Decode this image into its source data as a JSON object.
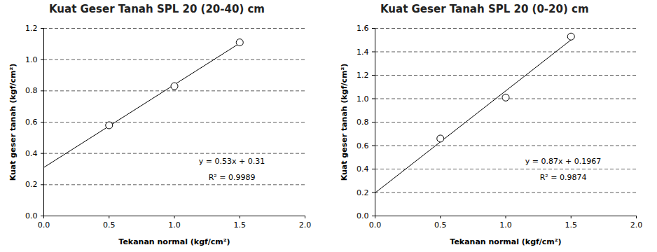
{
  "chart_data": [
    {
      "type": "scatter",
      "title": "Kuat Geser Tanah SPL 20 (20-40) cm",
      "x_label": "Tekanan normal (kgf/cm²)",
      "y_label": "Kuat geser tanah (kgf/cm²)",
      "x": [
        0.5,
        1.0,
        1.5
      ],
      "values": [
        0.58,
        0.83,
        1.11
      ],
      "marker": "circle",
      "trendline": {
        "x": [
          0,
          1.5
        ],
        "values": [
          0.31,
          1.105
        ]
      },
      "annotations": [
        "y = 0.53x + 0.31",
        "R² = 0.9989"
      ],
      "xlim": [
        0,
        2
      ],
      "xticks": [
        {
          "value": 0,
          "label": "0.0"
        },
        0.5,
        {
          "value": 1,
          "label": "1.0"
        },
        1.5,
        {
          "value": 2,
          "label": "2.0"
        }
      ],
      "ylim": [
        0,
        1.2
      ],
      "yticks": [
        {
          "value": 0,
          "label": "0.0"
        },
        0.2,
        0.4,
        0.6,
        0.8,
        {
          "value": 1,
          "label": "1.0"
        },
        1.2
      ],
      "grid": "y",
      "color": "#000000"
    },
    {
      "type": "scatter",
      "title": "Kuat Geser Tanah SPL 20 (0-20) cm",
      "x_label": "Tekanan normal (kgf/cm²)",
      "y_label": "Kuat geser tanah (kgf/cm²)",
      "x": [
        0.5,
        1.0,
        1.5
      ],
      "values": [
        0.66,
        1.01,
        1.53
      ],
      "marker": "circle",
      "trendline": {
        "x": [
          0,
          1.5
        ],
        "values": [
          0.1967,
          1.5017
        ]
      },
      "annotations": [
        "y = 0.87x + 0.1967",
        "R² = 0.9874"
      ],
      "xlim": [
        0,
        2
      ],
      "xticks": [
        {
          "value": 0,
          "label": "0.0"
        },
        0.5,
        {
          "value": 1,
          "label": "1.0"
        },
        1.5,
        {
          "value": 2,
          "label": "2.0"
        }
      ],
      "ylim": [
        0,
        1.6
      ],
      "yticks": [
        {
          "value": 0,
          "label": "0.0"
        },
        0.2,
        0.4,
        0.6,
        0.8,
        {
          "value": 1,
          "label": "1.0"
        },
        1.2,
        1.4,
        1.6
      ],
      "grid": "y",
      "color": "#000000"
    }
  ]
}
